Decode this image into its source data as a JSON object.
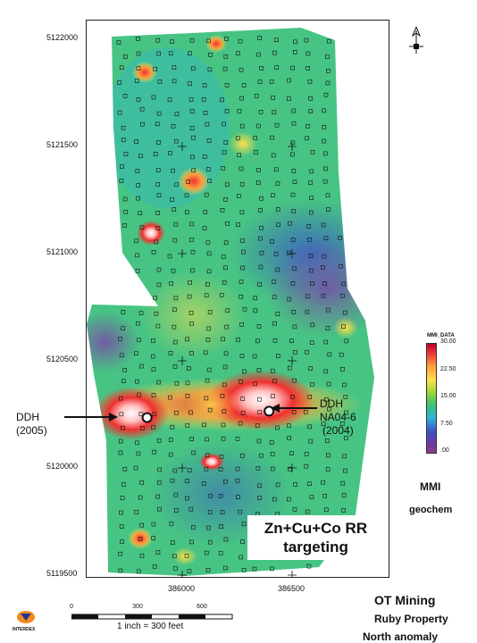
{
  "northing_labels": [
    {
      "text": "5122000",
      "v": 5122000
    },
    {
      "text": "5121500",
      "v": 5121500
    },
    {
      "text": "5121000",
      "v": 5121000
    },
    {
      "text": "5120500",
      "v": 5120500
    },
    {
      "text": "5120000",
      "v": 5120000
    },
    {
      "text": "5119500",
      "v": 5119500
    }
  ],
  "easting_labels": [
    {
      "text": "386000",
      "v": 386000
    },
    {
      "text": "386500",
      "v": 386500
    }
  ],
  "drill_holes": {
    "west": {
      "line1": "DDH",
      "line2": "(2005)",
      "easting": 385840,
      "northing": 5120235
    },
    "east": {
      "line1": "DDH",
      "line2": "NA04-6",
      "line3": "(2004)",
      "easting": 386395,
      "northing": 5120265
    }
  },
  "target_title": {
    "line1": "Zn+Cu+Co RR",
    "line2": "targeting"
  },
  "legend": {
    "title": "MMI_DATA",
    "ticks": [
      "30.00",
      "22.50",
      "15.00",
      "7.50",
      ".00"
    ],
    "tick_values": [
      30,
      22.5,
      15,
      7.5,
      0
    ],
    "colors": [
      "#c0002a",
      "#ffe04a",
      "#3fc46a",
      "#3a55c8",
      "#8a3a8a"
    ]
  },
  "mmi_label": "MMI",
  "geochem_label": "geochem",
  "company": "OT Mining",
  "property": "Ruby Property",
  "anomaly": "North anomaly",
  "scale": {
    "ticks": [
      "0",
      "300",
      "600"
    ],
    "text": "1 inch = 300 feet"
  },
  "logo_text": "INTERDEX",
  "north_arrow_icon": "north-arrow-icon"
}
